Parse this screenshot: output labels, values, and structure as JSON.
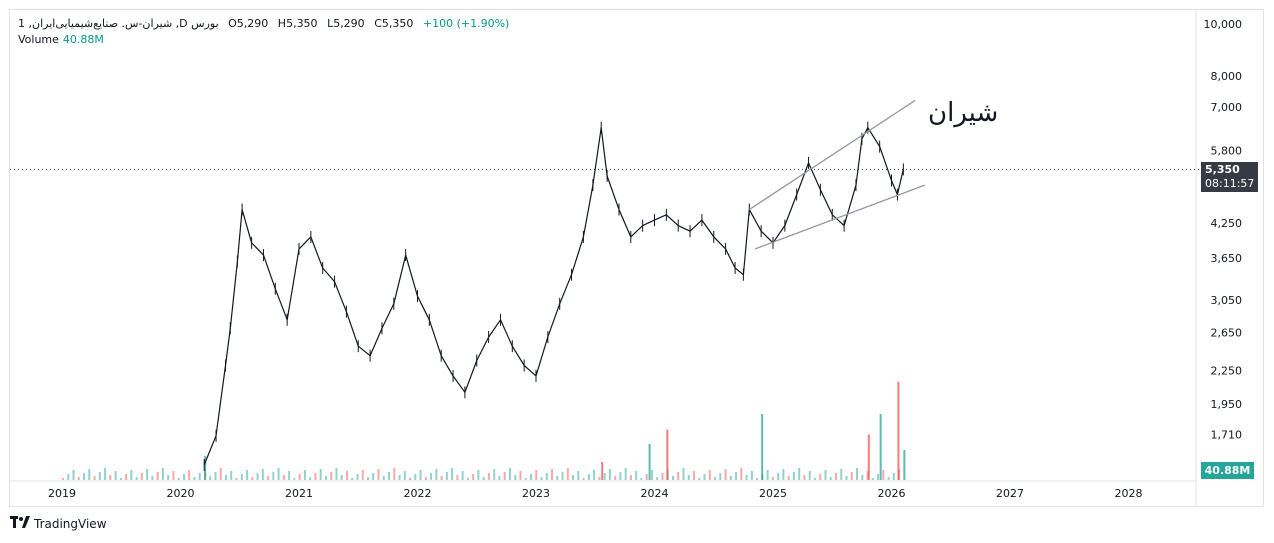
{
  "header": {
    "symbol": "1 ,شیران-س. صنایع‌شیمیایی‌ایران ,D بورس",
    "ohlc": {
      "o": "O5,290",
      "h": "H5,350",
      "l": "L5,290",
      "c": "C5,350"
    },
    "change": "+100 (+1.90%)",
    "volume_label": "Volume",
    "volume_value": "40.88M"
  },
  "annotation_text": "شیران",
  "last_price": "5,350",
  "countdown": "08:11:57",
  "volume_badge": "40.88M",
  "brand": "TradingView",
  "colors": {
    "up": "#26a69a",
    "down": "#ef5350",
    "candle": "#131722",
    "trendline": "#9598a1"
  },
  "chart_data": {
    "type": "line",
    "scale": "log",
    "x_ticks": [
      "2019",
      "2020",
      "2021",
      "2022",
      "2023",
      "2024",
      "2025",
      "2026",
      "2027",
      "2028"
    ],
    "y_ticks": [
      "10,000",
      "8,000",
      "7,000",
      "5,800",
      "5,350",
      "4,250",
      "3,650",
      "3,050",
      "2,650",
      "2,250",
      "1,950",
      "1,710"
    ],
    "ylim": [
      1480,
      10000
    ],
    "series": [
      {
        "values": [
          {
            "x": "2020.20",
            "y": 1500
          },
          {
            "x": "2020.30",
            "y": 1700
          },
          {
            "x": "2020.38",
            "y": 2300
          },
          {
            "x": "2020.42",
            "y": 2700
          },
          {
            "x": "2020.48",
            "y": 3600
          },
          {
            "x": "2020.52",
            "y": 4500
          },
          {
            "x": "2020.60",
            "y": 3900
          },
          {
            "x": "2020.70",
            "y": 3700
          },
          {
            "x": "2020.80",
            "y": 3200
          },
          {
            "x": "2020.90",
            "y": 2800
          },
          {
            "x": "2021.00",
            "y": 3800
          },
          {
            "x": "2021.10",
            "y": 4000
          },
          {
            "x": "2021.20",
            "y": 3500
          },
          {
            "x": "2021.30",
            "y": 3300
          },
          {
            "x": "2021.40",
            "y": 2900
          },
          {
            "x": "2021.50",
            "y": 2500
          },
          {
            "x": "2021.60",
            "y": 2400
          },
          {
            "x": "2021.70",
            "y": 2700
          },
          {
            "x": "2021.80",
            "y": 3000
          },
          {
            "x": "2021.90",
            "y": 3700
          },
          {
            "x": "2022.00",
            "y": 3100
          },
          {
            "x": "2022.10",
            "y": 2800
          },
          {
            "x": "2022.20",
            "y": 2400
          },
          {
            "x": "2022.30",
            "y": 2200
          },
          {
            "x": "2022.40",
            "y": 2050
          },
          {
            "x": "2022.50",
            "y": 2350
          },
          {
            "x": "2022.60",
            "y": 2600
          },
          {
            "x": "2022.70",
            "y": 2800
          },
          {
            "x": "2022.80",
            "y": 2500
          },
          {
            "x": "2022.90",
            "y": 2300
          },
          {
            "x": "2023.00",
            "y": 2200
          },
          {
            "x": "2023.10",
            "y": 2600
          },
          {
            "x": "2023.20",
            "y": 3000
          },
          {
            "x": "2023.30",
            "y": 3400
          },
          {
            "x": "2023.40",
            "y": 4000
          },
          {
            "x": "2023.48",
            "y": 5000
          },
          {
            "x": "2023.55",
            "y": 6400
          },
          {
            "x": "2023.60",
            "y": 5200
          },
          {
            "x": "2023.70",
            "y": 4500
          },
          {
            "x": "2023.80",
            "y": 4000
          },
          {
            "x": "2023.90",
            "y": 4200
          },
          {
            "x": "2024.00",
            "y": 4300
          },
          {
            "x": "2024.10",
            "y": 4400
          },
          {
            "x": "2024.20",
            "y": 4200
          },
          {
            "x": "2024.30",
            "y": 4100
          },
          {
            "x": "2024.40",
            "y": 4300
          },
          {
            "x": "2024.50",
            "y": 4000
          },
          {
            "x": "2024.60",
            "y": 3800
          },
          {
            "x": "2024.68",
            "y": 3500
          },
          {
            "x": "2024.75",
            "y": 3400
          },
          {
            "x": "2024.80",
            "y": 4500
          },
          {
            "x": "2024.90",
            "y": 4100
          },
          {
            "x": "2025.00",
            "y": 3900
          },
          {
            "x": "2025.10",
            "y": 4200
          },
          {
            "x": "2025.20",
            "y": 4800
          },
          {
            "x": "2025.30",
            "y": 5500
          },
          {
            "x": "2025.40",
            "y": 4900
          },
          {
            "x": "2025.50",
            "y": 4400
          },
          {
            "x": "2025.60",
            "y": 4200
          },
          {
            "x": "2025.70",
            "y": 5000
          },
          {
            "x": "2025.75",
            "y": 6100
          },
          {
            "x": "2025.80",
            "y": 6400
          },
          {
            "x": "2025.90",
            "y": 5900
          },
          {
            "x": "2026.00",
            "y": 5100
          },
          {
            "x": "2026.05",
            "y": 4800
          },
          {
            "x": "2026.10",
            "y": 5350
          }
        ]
      }
    ],
    "trendlines": [
      {
        "from": {
          "x": "2024.80",
          "y": 4500
        },
        "to": {
          "x": "2026.20",
          "y": 7200
        }
      },
      {
        "from": {
          "x": "2024.85",
          "y": 3800
        },
        "to": {
          "x": "2026.28",
          "y": 5000
        }
      }
    ],
    "current_price": 5350,
    "volume": {
      "last": "40.88M",
      "spikes": [
        {
          "x": "2020.20",
          "rel": 0.2
        },
        {
          "x": "2023.55",
          "rel": 0.15
        },
        {
          "x": "2023.95",
          "rel": 0.3
        },
        {
          "x": "2024.10",
          "rel": 0.42
        },
        {
          "x": "2024.90",
          "rel": 0.55
        },
        {
          "x": "2025.80",
          "rel": 0.38
        },
        {
          "x": "2025.90",
          "rel": 0.55
        },
        {
          "x": "2026.05",
          "rel": 0.82
        },
        {
          "x": "2026.10",
          "rel": 0.25
        }
      ]
    },
    "grid": false
  }
}
